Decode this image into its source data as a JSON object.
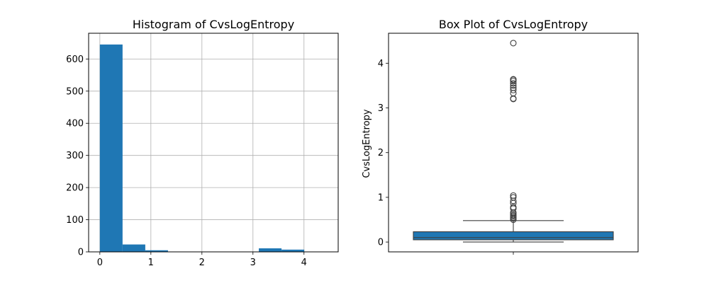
{
  "chart_data": [
    {
      "type": "histogram",
      "title": "Histogram of CvsLogEntropy",
      "xlabel": "",
      "ylabel": "",
      "xlim": [
        -0.22,
        4.67
      ],
      "ylim": [
        0,
        680
      ],
      "xticks": [
        0,
        1,
        2,
        3,
        4
      ],
      "yticks": [
        0,
        100,
        200,
        300,
        400,
        500,
        600
      ],
      "grid": true,
      "color": "#1f77b4",
      "bins": [
        {
          "x0": 0.0,
          "x1": 0.445,
          "count": 645
        },
        {
          "x0": 0.445,
          "x1": 0.89,
          "count": 23
        },
        {
          "x0": 0.89,
          "x1": 1.335,
          "count": 5
        },
        {
          "x0": 1.335,
          "x1": 1.78,
          "count": 0
        },
        {
          "x0": 1.78,
          "x1": 2.225,
          "count": 0
        },
        {
          "x0": 2.225,
          "x1": 2.67,
          "count": 0
        },
        {
          "x0": 2.67,
          "x1": 3.115,
          "count": 0
        },
        {
          "x0": 3.115,
          "x1": 3.56,
          "count": 11
        },
        {
          "x0": 3.56,
          "x1": 4.005,
          "count": 7
        },
        {
          "x0": 4.005,
          "x1": 4.45,
          "count": 1
        }
      ]
    },
    {
      "type": "box",
      "title": "Box Plot of CvsLogEntropy",
      "xlabel": "",
      "ylabel": "CvsLogEntropy",
      "ylim": [
        -0.22,
        4.67
      ],
      "yticks": [
        0,
        1,
        2,
        3,
        4
      ],
      "grid": false,
      "color": "#1f77b4",
      "stats": {
        "min": 0.0,
        "q1": 0.05,
        "median": 0.1,
        "q3": 0.23,
        "whisker_high": 0.48
      },
      "outliers": [
        0.5,
        0.53,
        0.55,
        0.58,
        0.6,
        0.63,
        0.66,
        0.75,
        0.78,
        0.87,
        0.92,
        1.0,
        1.04,
        3.2,
        3.21,
        3.33,
        3.4,
        3.45,
        3.5,
        3.55,
        3.6,
        3.63,
        3.64,
        4.45
      ]
    }
  ]
}
